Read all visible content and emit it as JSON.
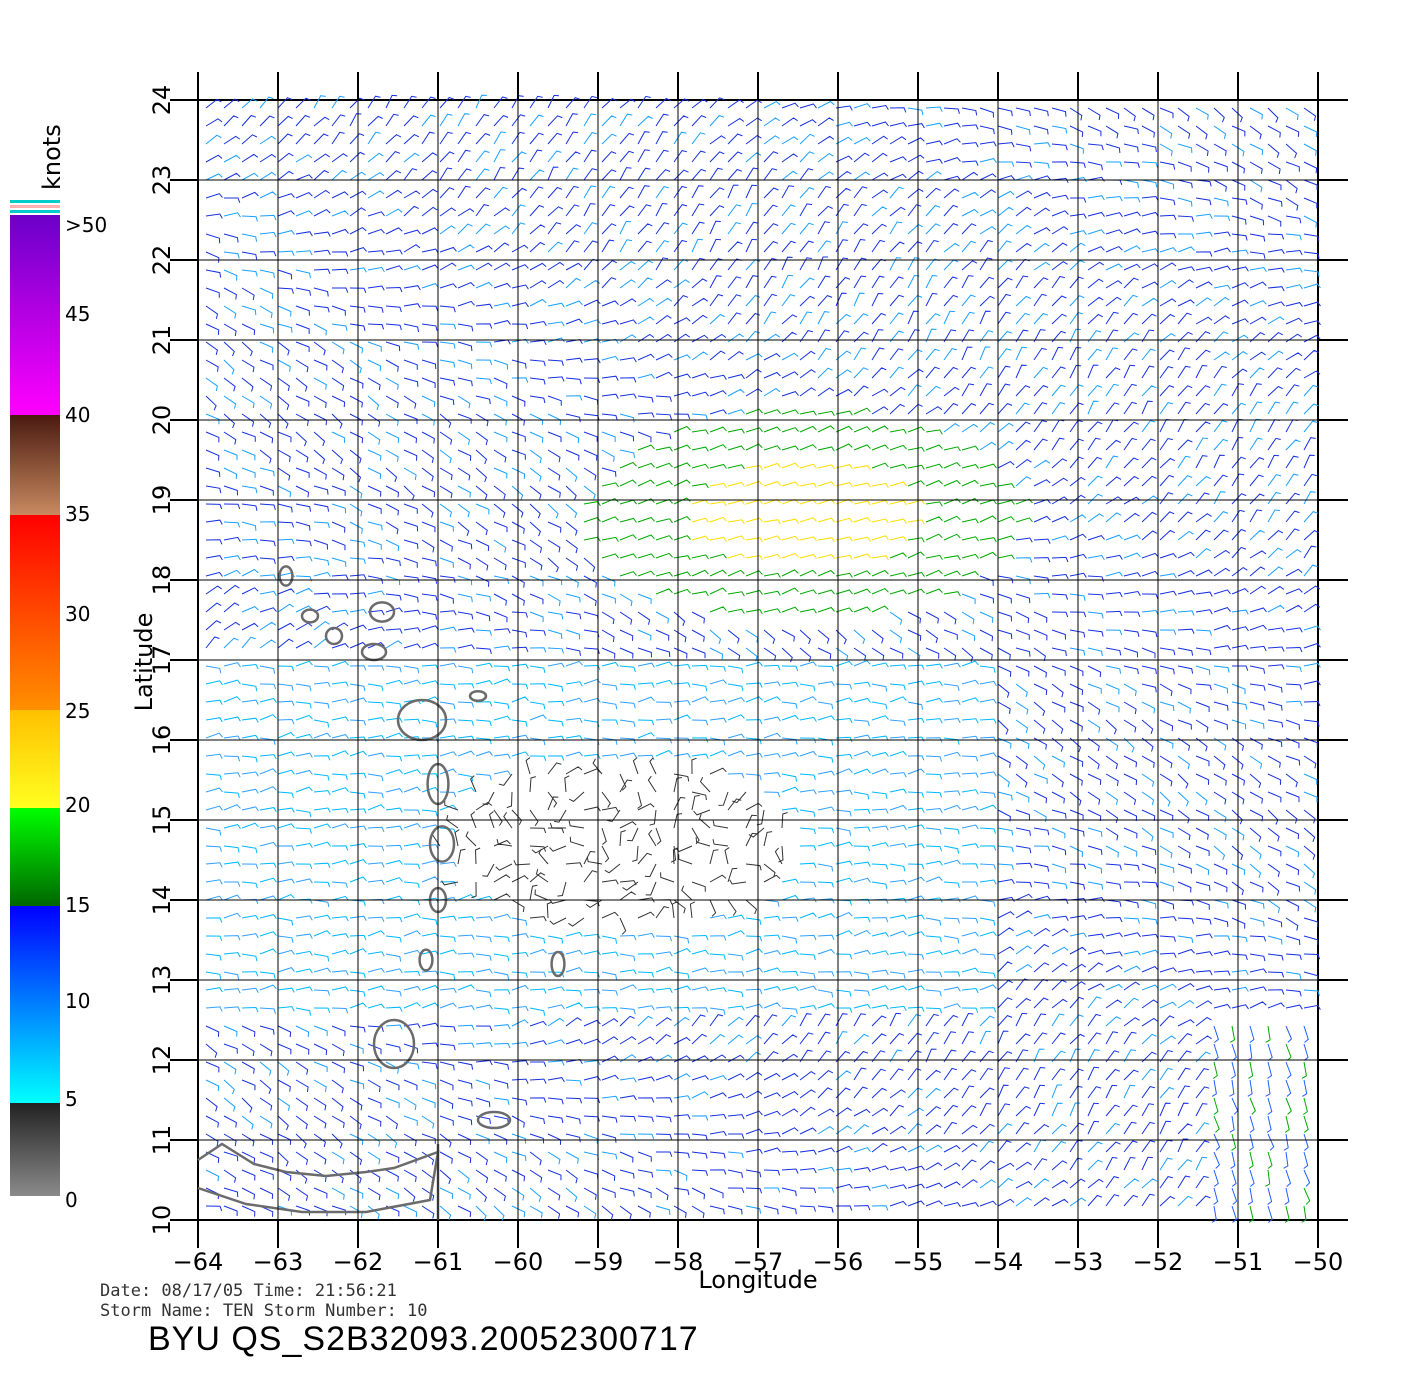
{
  "map": {
    "lon_range": [
      -64,
      -50
    ],
    "lat_range": [
      10,
      24
    ],
    "lon_ticks": [
      "−64",
      "−63",
      "−62",
      "−61",
      "−60",
      "−59",
      "−58",
      "−57",
      "−56",
      "−55",
      "−54",
      "−53",
      "−52",
      "−51",
      "−50"
    ],
    "lat_ticks": [
      "10",
      "11",
      "12",
      "13",
      "14",
      "15",
      "16",
      "17",
      "18",
      "19",
      "20",
      "21",
      "22",
      "23",
      "24"
    ],
    "xlabel": "Longitude",
    "ylabel": "Latitude",
    "grid": true,
    "land_color": "#666666"
  },
  "legend": {
    "title": "knots",
    "labels": [
      ">50",
      "45",
      "40",
      "35",
      "30",
      "25",
      "20",
      "15",
      "10",
      "5",
      "0"
    ],
    "colors": {
      "gray": "#888888",
      "cyan": "#00e5ff",
      "blue": "#0000ff",
      "green": "#00aa00",
      "yellow": "#ffdd00",
      "orange": "#ff8800",
      "red": "#ff2200",
      "brown": "#8b5a3c",
      "magenta": "#ff00ff",
      "purple": "#7700cc"
    }
  },
  "footer": {
    "line1": "Date: 08/17/05   Time: 21:56:21",
    "line2": "Storm Name: TEN   Storm Number: 10",
    "title": "BYU QS_S2B32093.20052300717"
  }
}
